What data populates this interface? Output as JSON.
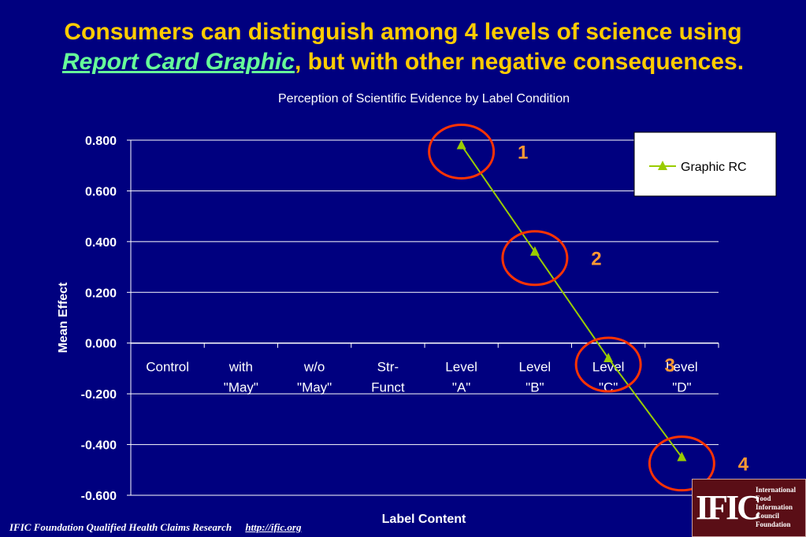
{
  "header": {
    "title_line1": "Consumers can distinguish among 4 levels of science using",
    "title_rc": "Report Card Graphic",
    "title_line2_rest": ", but with other negative consequences."
  },
  "footer": {
    "text": "IFIC Foundation Qualified Health Claims Research",
    "link": "http://ific.org"
  },
  "logo": {
    "mark": "IFIC",
    "words": [
      "International",
      "Food",
      "Information",
      "Council",
      "Foundation"
    ]
  },
  "colors": {
    "background": "#00007f",
    "title": "#ffcc00",
    "highlight": "#66ff99",
    "series": "#99cc00",
    "callout": "#ff3300",
    "callout_text": "#ff9933"
  },
  "chart_data": {
    "type": "line",
    "title": "Perception of Scientific Evidence by Label Condition",
    "xlabel": "Label Content",
    "ylabel": "Mean Effect",
    "categories": [
      [
        "Control"
      ],
      [
        "with",
        "\"May\""
      ],
      [
        "w/o",
        "\"May\""
      ],
      [
        "Str-",
        "Funct"
      ],
      [
        "Level",
        "\"A\""
      ],
      [
        "Level",
        "\"B\""
      ],
      [
        "Level",
        "\"C\""
      ],
      [
        "Level",
        "\"D\""
      ]
    ],
    "ylim": [
      -0.6,
      0.8
    ],
    "yticks": [
      "0.800",
      "0.600",
      "0.400",
      "0.200",
      "0.000",
      "-0.200",
      "-0.400",
      "-0.600"
    ],
    "grid": true,
    "legend": "top-right",
    "series": [
      {
        "name": "Graphic RC",
        "marker": "triangle",
        "values": [
          null,
          null,
          null,
          null,
          0.78,
          0.36,
          -0.06,
          -0.45
        ]
      }
    ],
    "annotations": [
      {
        "label": "1",
        "category": 4,
        "value": 0.78
      },
      {
        "label": "2",
        "category": 5,
        "value": 0.36
      },
      {
        "label": "3",
        "category": 6,
        "value": -0.06
      },
      {
        "label": "4",
        "category": 7,
        "value": -0.45
      }
    ]
  }
}
